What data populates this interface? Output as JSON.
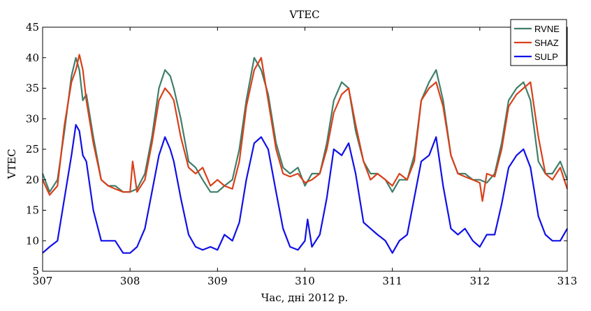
{
  "chart_data": {
    "type": "line",
    "title": "VTEC",
    "xlabel": "Час, дні 2012 р.",
    "ylabel": "VTEC",
    "xlim": [
      307,
      313
    ],
    "ylim": [
      5,
      45
    ],
    "xticks": [
      307,
      308,
      309,
      310,
      311,
      312,
      313
    ],
    "yticks": [
      5,
      10,
      15,
      20,
      25,
      30,
      35,
      40,
      45
    ],
    "grid": false,
    "legend_position": "top-right",
    "series": [
      {
        "name": "RVNE",
        "color": "#3f7f6a",
        "x": [
          307.0,
          307.08,
          307.17,
          307.25,
          307.33,
          307.38,
          307.42,
          307.46,
          307.5,
          307.58,
          307.67,
          307.75,
          307.83,
          307.92,
          308.0,
          308.08,
          308.17,
          308.25,
          308.33,
          308.4,
          308.46,
          308.5,
          308.58,
          308.67,
          308.75,
          308.83,
          308.92,
          309.0,
          309.08,
          309.17,
          309.25,
          309.33,
          309.42,
          309.5,
          309.58,
          309.67,
          309.75,
          309.83,
          309.92,
          310.0,
          310.08,
          310.17,
          310.25,
          310.33,
          310.42,
          310.5,
          310.58,
          310.67,
          310.75,
          310.83,
          310.92,
          311.0,
          311.08,
          311.17,
          311.25,
          311.33,
          311.42,
          311.5,
          311.58,
          311.67,
          311.75,
          311.83,
          311.92,
          312.0,
          312.08,
          312.17,
          312.25,
          312.33,
          312.42,
          312.5,
          312.58,
          312.67,
          312.75,
          312.83,
          312.92,
          313.0
        ],
        "values": [
          21,
          18,
          20,
          28,
          37,
          40,
          38,
          33,
          34,
          27,
          20,
          19,
          19,
          18,
          18,
          18.5,
          21,
          27,
          35,
          38,
          37,
          35,
          30,
          23,
          22,
          20,
          18,
          18,
          19,
          20,
          25,
          33,
          40,
          38,
          34,
          26,
          22,
          21,
          22,
          19,
          21,
          21,
          26,
          33,
          36,
          35,
          28,
          23,
          21,
          21,
          20,
          18,
          20,
          20,
          24,
          33,
          36,
          38,
          33,
          24,
          21,
          21,
          20,
          20,
          19.5,
          21,
          26,
          33,
          35,
          36,
          33,
          23,
          21,
          21,
          23,
          20
        ]
      },
      {
        "name": "SHAZ",
        "color": "#d9401a",
        "x": [
          307.0,
          307.08,
          307.17,
          307.25,
          307.33,
          307.38,
          307.42,
          307.46,
          307.5,
          307.58,
          307.67,
          307.75,
          307.83,
          307.92,
          308.0,
          308.03,
          308.08,
          308.17,
          308.25,
          308.33,
          308.4,
          308.46,
          308.5,
          308.58,
          308.67,
          308.75,
          308.83,
          308.92,
          309.0,
          309.08,
          309.17,
          309.25,
          309.33,
          309.42,
          309.5,
          309.58,
          309.67,
          309.75,
          309.83,
          309.92,
          310.0,
          310.08,
          310.17,
          310.25,
          310.33,
          310.42,
          310.5,
          310.58,
          310.67,
          310.75,
          310.83,
          310.92,
          311.0,
          311.08,
          311.17,
          311.25,
          311.33,
          311.42,
          311.5,
          311.58,
          311.67,
          311.75,
          311.83,
          311.92,
          312.0,
          312.03,
          312.08,
          312.17,
          312.25,
          312.33,
          312.42,
          312.5,
          312.58,
          312.67,
          312.75,
          312.83,
          312.92,
          313.0
        ],
        "values": [
          20,
          17.5,
          19,
          29,
          36,
          38,
          40.5,
          38,
          33,
          26,
          20,
          19,
          18.5,
          18,
          18,
          23,
          18,
          20,
          26,
          33,
          35,
          34,
          33,
          27,
          22,
          21,
          22,
          19,
          20,
          19,
          18.5,
          23,
          32,
          38,
          40,
          33,
          25,
          21,
          20.5,
          21,
          19.5,
          20,
          21,
          25,
          31,
          34,
          35,
          29,
          23,
          20,
          21,
          20,
          19,
          21,
          20,
          23,
          33,
          35,
          36,
          32,
          24,
          21,
          20.5,
          20,
          19.5,
          16.5,
          21,
          20.5,
          25,
          32,
          34,
          35,
          36,
          27,
          21,
          20,
          22,
          18.5
        ]
      },
      {
        "name": "SULP",
        "color": "#1010e8",
        "x": [
          307.0,
          307.08,
          307.17,
          307.25,
          307.33,
          307.38,
          307.42,
          307.46,
          307.5,
          307.58,
          307.67,
          307.75,
          307.83,
          307.92,
          308.0,
          308.08,
          308.17,
          308.25,
          308.33,
          308.4,
          308.46,
          308.5,
          308.58,
          308.67,
          308.75,
          308.83,
          308.92,
          309.0,
          309.08,
          309.17,
          309.25,
          309.33,
          309.42,
          309.5,
          309.58,
          309.67,
          309.75,
          309.83,
          309.92,
          310.0,
          310.03,
          310.08,
          310.17,
          310.25,
          310.33,
          310.42,
          310.5,
          310.58,
          310.67,
          310.75,
          310.83,
          310.92,
          311.0,
          311.08,
          311.17,
          311.25,
          311.33,
          311.42,
          311.5,
          311.58,
          311.67,
          311.75,
          311.83,
          311.92,
          312.0,
          312.08,
          312.17,
          312.25,
          312.33,
          312.42,
          312.5,
          312.58,
          312.67,
          312.75,
          312.83,
          312.92,
          313.0
        ],
        "values": [
          8,
          9,
          10,
          17,
          24,
          29,
          28,
          24,
          23,
          15,
          10,
          10,
          10,
          8,
          8,
          9,
          12,
          18,
          24,
          27,
          25,
          23,
          17,
          11,
          9,
          8.5,
          9,
          8.5,
          11,
          10,
          13,
          20,
          26,
          27,
          25,
          18,
          12,
          9,
          8.5,
          10,
          13.5,
          9,
          11,
          17,
          25,
          24,
          26,
          21,
          13,
          12,
          11,
          10,
          8,
          10,
          11,
          17,
          23,
          24,
          27,
          19,
          12,
          11,
          12,
          10,
          9,
          11,
          11,
          16,
          22,
          24,
          25,
          22,
          14,
          11,
          10,
          10,
          12
        ]
      }
    ]
  }
}
